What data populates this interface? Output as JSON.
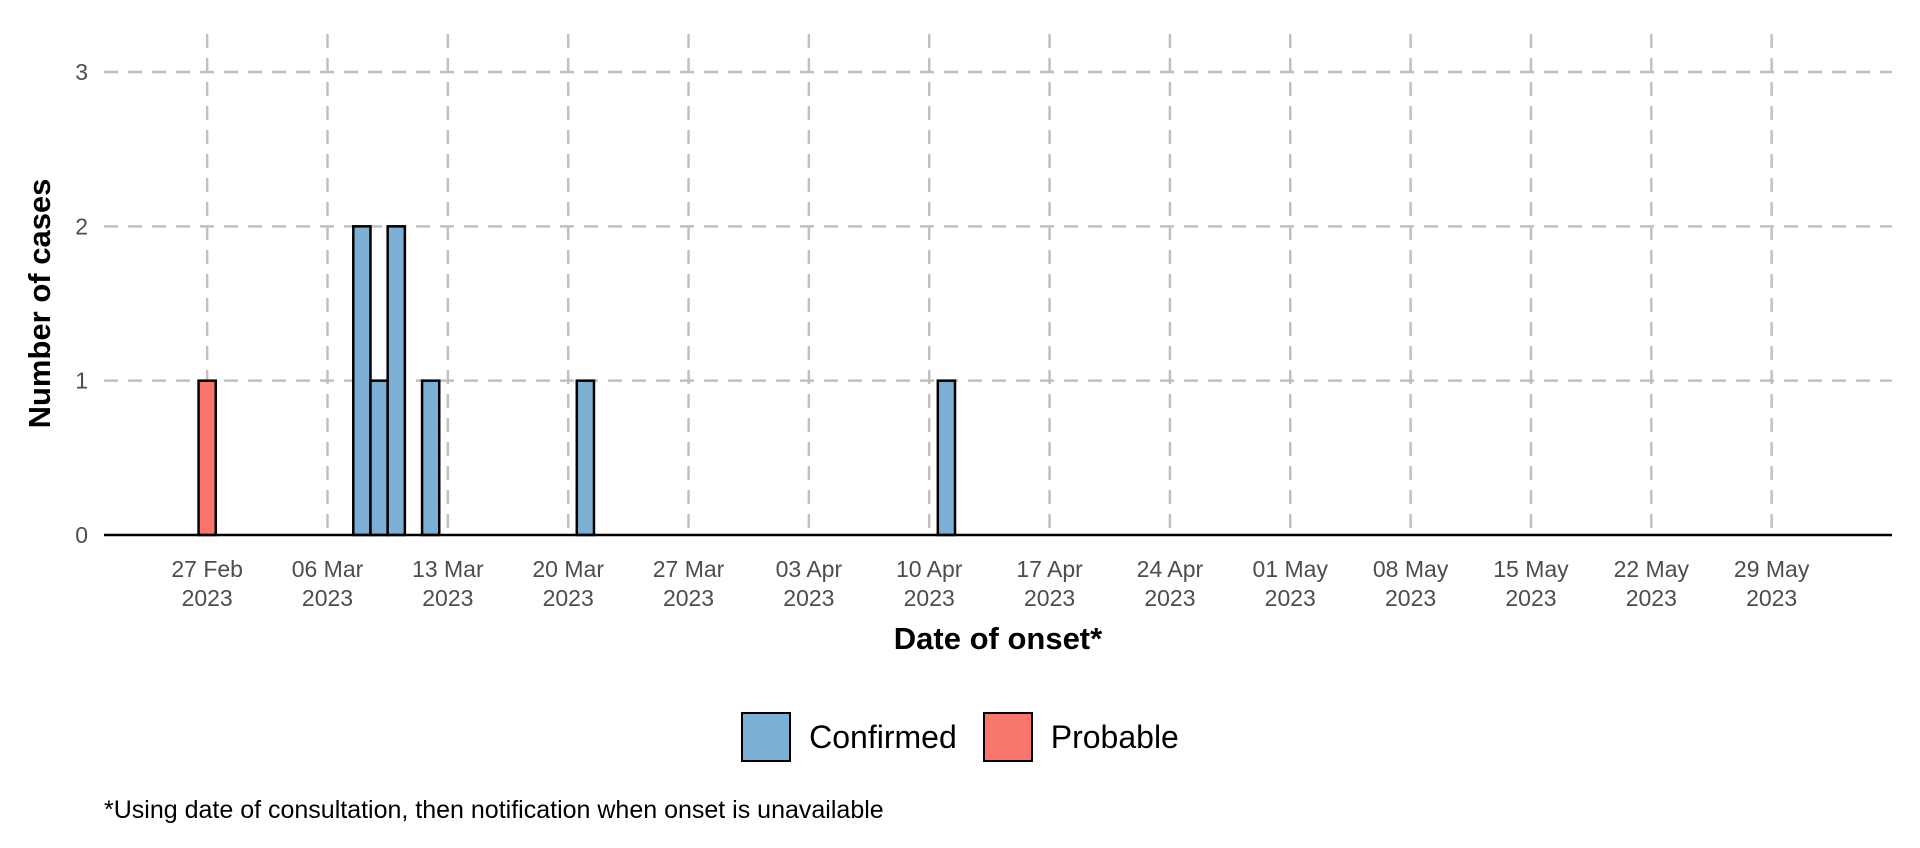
{
  "chart_data": {
    "type": "bar",
    "xlabel": "Date of onset*",
    "ylabel": "Number of cases",
    "ylim": [
      0,
      3
    ],
    "yticks": [
      0,
      1,
      2,
      3
    ],
    "xlim": [
      "2023-02-21",
      "2023-06-05"
    ],
    "xticks": [
      {
        "date": "2023-02-27",
        "line1": "27 Feb",
        "line2": "2023"
      },
      {
        "date": "2023-03-06",
        "line1": "06 Mar",
        "line2": "2023"
      },
      {
        "date": "2023-03-13",
        "line1": "13 Mar",
        "line2": "2023"
      },
      {
        "date": "2023-03-20",
        "line1": "20 Mar",
        "line2": "2023"
      },
      {
        "date": "2023-03-27",
        "line1": "27 Mar",
        "line2": "2023"
      },
      {
        "date": "2023-04-03",
        "line1": "03 Apr",
        "line2": "2023"
      },
      {
        "date": "2023-04-10",
        "line1": "10 Apr",
        "line2": "2023"
      },
      {
        "date": "2023-04-17",
        "line1": "17 Apr",
        "line2": "2023"
      },
      {
        "date": "2023-04-24",
        "line1": "24 Apr",
        "line2": "2023"
      },
      {
        "date": "2023-05-01",
        "line1": "01 May",
        "line2": "2023"
      },
      {
        "date": "2023-05-08",
        "line1": "08 May",
        "line2": "2023"
      },
      {
        "date": "2023-05-15",
        "line1": "15 May",
        "line2": "2023"
      },
      {
        "date": "2023-05-22",
        "line1": "22 May",
        "line2": "2023"
      },
      {
        "date": "2023-05-29",
        "line1": "29 May",
        "line2": "2023"
      }
    ],
    "stacked": true,
    "grid": true,
    "legend_position": "bottom",
    "series": [
      {
        "name": "Confirmed",
        "color": "#7BAFD4",
        "points": [
          {
            "date": "2023-03-08",
            "value": 2
          },
          {
            "date": "2023-03-09",
            "value": 1
          },
          {
            "date": "2023-03-10",
            "value": 2
          },
          {
            "date": "2023-03-12",
            "value": 1
          },
          {
            "date": "2023-03-21",
            "value": 1
          },
          {
            "date": "2023-04-11",
            "value": 1
          }
        ]
      },
      {
        "name": "Probable",
        "color": "#F8766D",
        "points": [
          {
            "date": "2023-02-27",
            "value": 1
          }
        ]
      }
    ]
  },
  "legend": {
    "items": [
      {
        "label": "Confirmed",
        "color": "#7BAFD4"
      },
      {
        "label": "Probable",
        "color": "#F8766D"
      }
    ]
  },
  "footnote": "*Using date of consultation, then notification when onset is unavailable"
}
